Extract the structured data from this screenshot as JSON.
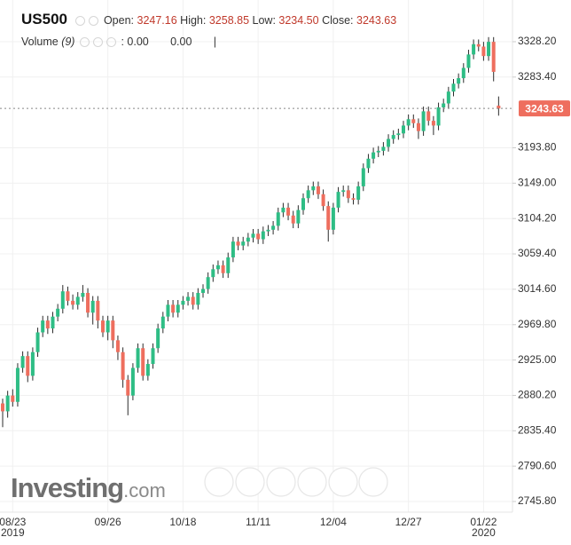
{
  "header": {
    "symbol": "US500",
    "open_label": "Open:",
    "open": "3247.16",
    "high_label": "High:",
    "high": "3258.85",
    "low_label": "Low:",
    "low": "3234.50",
    "close_label": "Close:",
    "close": "3243.63",
    "volume_label": "Volume",
    "volume_period": "(9)",
    "volume_sep": ":",
    "volume_value_1": "0.00",
    "volume_value_2": "0.00"
  },
  "watermark": {
    "brand": "Investing",
    "suffix": ".com"
  },
  "chart_data": {
    "type": "candlestick",
    "up_color": "#2ebd85",
    "down_color": "#ee6e5e",
    "grid": true,
    "ylim": [
      2732.3,
      3381.0
    ],
    "yticks": [
      {
        "value": 2745.8,
        "label": "2745.80"
      },
      {
        "value": 2790.6,
        "label": "2790.60"
      },
      {
        "value": 2835.4,
        "label": "2835.40"
      },
      {
        "value": 2880.2,
        "label": "2880.20"
      },
      {
        "value": 2925,
        "label": "2925.00"
      },
      {
        "value": 2969.8,
        "label": "2969.80"
      },
      {
        "value": 3014.6,
        "label": "3014.60"
      },
      {
        "value": 3059.4,
        "label": "3059.40"
      },
      {
        "value": 3104.2,
        "label": "3104.20"
      },
      {
        "value": 3149,
        "label": "3149.00"
      },
      {
        "value": 3193.8,
        "label": "3193.80"
      },
      {
        "value": 3283.4,
        "label": "3283.40"
      },
      {
        "value": 3328.2,
        "label": "3328.20"
      }
    ],
    "categories": [
      null,
      null,
      "08/23",
      null,
      null,
      null,
      null,
      null,
      null,
      null,
      null,
      null,
      null,
      null,
      null,
      null,
      null,
      null,
      null,
      null,
      null,
      "09/26",
      null,
      null,
      null,
      null,
      null,
      null,
      null,
      null,
      null,
      null,
      null,
      null,
      null,
      null,
      "10/18",
      null,
      null,
      null,
      null,
      null,
      null,
      null,
      null,
      null,
      null,
      null,
      null,
      null,
      null,
      "11/11",
      null,
      null,
      null,
      null,
      null,
      null,
      null,
      null,
      null,
      null,
      null,
      null,
      null,
      null,
      "12/04",
      null,
      null,
      null,
      null,
      null,
      null,
      null,
      null,
      null,
      null,
      null,
      null,
      null,
      null,
      "12/27",
      null,
      null,
      null,
      null,
      null,
      null,
      null,
      null,
      null,
      null,
      null,
      null,
      null,
      null,
      "01/22",
      null,
      null,
      null
    ],
    "x_sublabels": [
      null,
      null,
      "2019",
      null,
      null,
      null,
      null,
      null,
      null,
      null,
      null,
      null,
      null,
      null,
      null,
      null,
      null,
      null,
      null,
      null,
      null,
      null,
      null,
      null,
      null,
      null,
      null,
      null,
      null,
      null,
      null,
      null,
      null,
      null,
      null,
      null,
      null,
      null,
      null,
      null,
      null,
      null,
      null,
      null,
      null,
      null,
      null,
      null,
      null,
      null,
      null,
      null,
      null,
      null,
      null,
      null,
      null,
      null,
      null,
      null,
      null,
      null,
      null,
      null,
      null,
      null,
      null,
      null,
      null,
      null,
      null,
      null,
      null,
      null,
      null,
      null,
      null,
      null,
      null,
      null,
      null,
      null,
      null,
      null,
      null,
      null,
      null,
      null,
      null,
      null,
      null,
      null,
      null,
      null,
      null,
      null,
      "2020",
      null,
      null,
      null
    ],
    "open": [
      2870,
      2860,
      2880,
      2872,
      2915,
      2930,
      2905,
      2935,
      2960,
      2975,
      2965,
      2980,
      2990,
      3012,
      3000,
      2995,
      3005,
      3010,
      2985,
      3000,
      2975,
      2960,
      2975,
      2950,
      2935,
      2900,
      2880,
      2915,
      2940,
      2905,
      2920,
      2940,
      2965,
      2980,
      2995,
      2985,
      2995,
      3000,
      3005,
      2995,
      3010,
      3015,
      3030,
      3040,
      3045,
      3035,
      3055,
      3075,
      3070,
      3075,
      3080,
      3085,
      3078,
      3088,
      3090,
      3095,
      3112,
      3118,
      3108,
      3098,
      3115,
      3130,
      3140,
      3145,
      3135,
      3120,
      3090,
      3118,
      3138,
      3140,
      3130,
      3128,
      3145,
      3168,
      3180,
      3188,
      3190,
      3195,
      3205,
      3210,
      3212,
      3222,
      3230,
      3225,
      3215,
      3240,
      3228,
      3222,
      3245,
      3250,
      3265,
      3275,
      3282,
      3295,
      3312,
      3325,
      3322,
      3310,
      3328,
      3247.16
    ],
    "high": [
      2876,
      2886,
      2888,
      2921,
      2936,
      2936,
      2941,
      2966,
      2981,
      2981,
      2986,
      2996,
      3020,
      3018,
      3008,
      3011,
      3020,
      3016,
      3006,
      3006,
      2981,
      2981,
      2981,
      2956,
      2941,
      2906,
      2921,
      2946,
      2946,
      2926,
      2946,
      2971,
      2986,
      3001,
      3001,
      3001,
      3006,
      3011,
      3011,
      3016,
      3021,
      3036,
      3046,
      3051,
      3051,
      3061,
      3081,
      3081,
      3081,
      3086,
      3091,
      3091,
      3094,
      3096,
      3101,
      3118,
      3124,
      3124,
      3114,
      3121,
      3136,
      3146,
      3151,
      3151,
      3141,
      3126,
      3124,
      3144,
      3146,
      3146,
      3136,
      3151,
      3174,
      3186,
      3194,
      3196,
      3201,
      3211,
      3216,
      3218,
      3228,
      3236,
      3236,
      3231,
      3246,
      3246,
      3234,
      3251,
      3256,
      3271,
      3281,
      3288,
      3301,
      3318,
      3331,
      3331,
      3328,
      3334,
      3334,
      3258.85
    ],
    "low": [
      2840,
      2852,
      2866,
      2866,
      2909,
      2897,
      2899,
      2929,
      2954,
      2958,
      2959,
      2974,
      2984,
      2994,
      2989,
      2989,
      2999,
      2979,
      2970,
      2965,
      2954,
      2950,
      2940,
      2925,
      2890,
      2855,
      2874,
      2909,
      2899,
      2899,
      2914,
      2934,
      2959,
      2974,
      2979,
      2979,
      2989,
      2994,
      2989,
      2989,
      3004,
      3009,
      3024,
      3034,
      3029,
      3029,
      3049,
      3064,
      3064,
      3069,
      3074,
      3072,
      3072,
      3082,
      3084,
      3089,
      3106,
      3102,
      3092,
      3092,
      3109,
      3124,
      3134,
      3129,
      3114,
      3075,
      3084,
      3112,
      3132,
      3124,
      3122,
      3122,
      3139,
      3162,
      3174,
      3182,
      3184,
      3189,
      3199,
      3204,
      3206,
      3216,
      3219,
      3205,
      3209,
      3222,
      3210,
      3216,
      3239,
      3244,
      3259,
      3269,
      3276,
      3289,
      3306,
      3316,
      3304,
      3304,
      3278,
      3234.5
    ],
    "close": [
      2860,
      2880,
      2872,
      2915,
      2930,
      2905,
      2935,
      2960,
      2975,
      2965,
      2980,
      2990,
      3012,
      3000,
      2995,
      3005,
      3010,
      2985,
      3000,
      2975,
      2960,
      2975,
      2950,
      2935,
      2900,
      2880,
      2915,
      2940,
      2905,
      2920,
      2940,
      2965,
      2980,
      2995,
      2985,
      2995,
      3000,
      3005,
      2995,
      3010,
      3015,
      3030,
      3040,
      3045,
      3035,
      3055,
      3075,
      3070,
      3075,
      3080,
      3085,
      3078,
      3088,
      3090,
      3095,
      3112,
      3118,
      3108,
      3098,
      3115,
      3130,
      3140,
      3145,
      3135,
      3120,
      3090,
      3118,
      3138,
      3140,
      3130,
      3128,
      3145,
      3168,
      3180,
      3188,
      3190,
      3195,
      3205,
      3210,
      3212,
      3222,
      3230,
      3225,
      3215,
      3240,
      3228,
      3222,
      3245,
      3250,
      3265,
      3275,
      3282,
      3295,
      3312,
      3325,
      3322,
      3310,
      3328,
      3290,
      3243.63
    ]
  }
}
